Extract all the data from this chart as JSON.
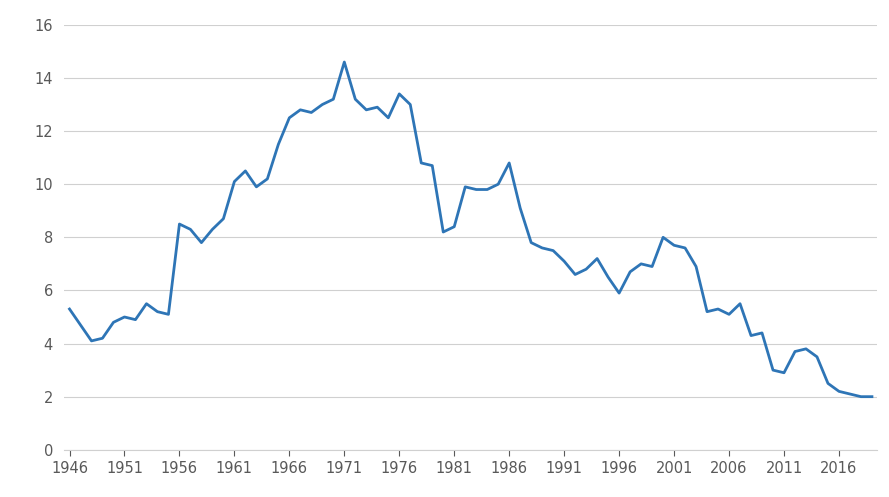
{
  "years": [
    1946,
    1947,
    1948,
    1949,
    1950,
    1951,
    1952,
    1953,
    1954,
    1955,
    1956,
    1957,
    1958,
    1959,
    1960,
    1961,
    1962,
    1963,
    1964,
    1965,
    1966,
    1967,
    1968,
    1969,
    1970,
    1971,
    1972,
    1973,
    1974,
    1975,
    1976,
    1977,
    1978,
    1979,
    1980,
    1981,
    1982,
    1983,
    1984,
    1985,
    1986,
    1987,
    1988,
    1989,
    1990,
    1991,
    1992,
    1993,
    1994,
    1995,
    1996,
    1997,
    1998,
    1999,
    2000,
    2001,
    2002,
    2003,
    2004,
    2005,
    2006,
    2007,
    2008,
    2009,
    2010,
    2011,
    2012,
    2013,
    2014,
    2015,
    2016,
    2017,
    2018,
    2019
  ],
  "values": [
    5.3,
    4.7,
    4.1,
    4.2,
    4.8,
    5.0,
    4.9,
    5.5,
    5.2,
    5.1,
    8.5,
    8.3,
    7.8,
    8.3,
    8.7,
    10.1,
    10.5,
    9.9,
    10.2,
    11.5,
    12.5,
    12.8,
    12.7,
    13.0,
    13.2,
    14.6,
    13.2,
    12.8,
    12.9,
    12.5,
    13.4,
    13.0,
    10.8,
    10.7,
    8.2,
    8.4,
    9.9,
    9.8,
    9.8,
    10.0,
    10.8,
    9.1,
    7.8,
    7.6,
    7.5,
    7.1,
    6.6,
    6.8,
    7.2,
    6.5,
    5.9,
    6.7,
    7.0,
    6.9,
    8.0,
    7.7,
    7.6,
    6.9,
    5.2,
    5.3,
    5.1,
    5.5,
    4.3,
    4.4,
    3.0,
    2.9,
    3.7,
    3.8,
    3.5,
    2.5,
    2.2,
    2.1,
    2.0,
    2.0
  ],
  "line_color": "#2E75B6",
  "line_width": 2.0,
  "background_color": "#FFFFFF",
  "outer_background": "#E8E8E8",
  "grid_color": "#D0D0D0",
  "xlim_min": 1945.5,
  "xlim_max": 2019.5,
  "ylim": [
    0,
    16
  ],
  "yticks": [
    0,
    2,
    4,
    6,
    8,
    10,
    12,
    14,
    16
  ],
  "xticks": [
    1946,
    1951,
    1956,
    1961,
    1966,
    1971,
    1976,
    1981,
    1986,
    1991,
    1996,
    2001,
    2006,
    2011,
    2016
  ],
  "tick_fontsize": 10.5,
  "tick_color": "#595959"
}
